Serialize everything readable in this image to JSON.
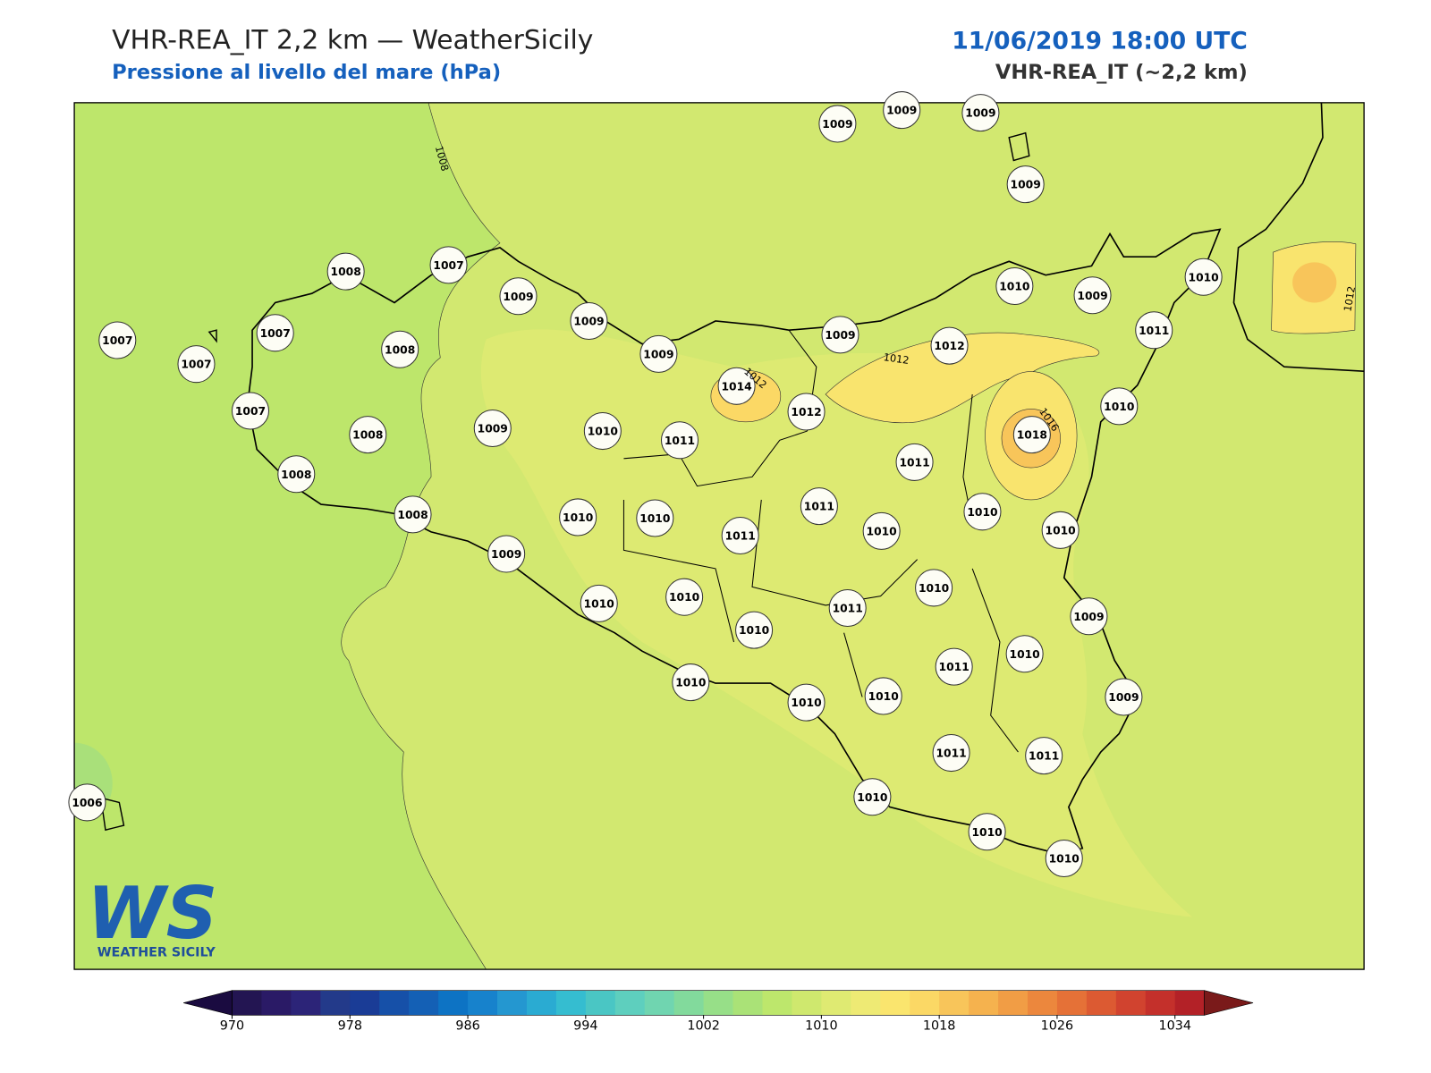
{
  "header": {
    "title": "VHR-REA_IT 2,2 km — WeatherSicily",
    "subtitle": "Pressione al livello del mare (hPa)",
    "date": "11/06/2019 18:00 UTC",
    "model": "VHR-REA_IT (~2,2 km)"
  },
  "map": {
    "stations": [
      1009,
      1009,
      1009,
      1009,
      1008,
      1007,
      1009,
      1009,
      1007,
      1007,
      1008,
      1007,
      1009,
      1009,
      1010,
      1009,
      1010,
      1011,
      1012,
      1014,
      1012,
      1010,
      1018,
      1007,
      1008,
      1009,
      1010,
      1011,
      1011,
      1008,
      1011,
      1010,
      1010,
      1008,
      1010,
      1010,
      1011,
      1010,
      1009,
      1010,
      1009,
      1010,
      1010,
      1011,
      1010,
      1011,
      1010,
      1010,
      1010,
      1010,
      1009,
      1011,
      1011,
      1006,
      1010,
      1010,
      1010
    ],
    "contour_labels": [
      1008,
      1012,
      1012,
      1016,
      1012
    ]
  },
  "colorbar": {
    "range": [
      970,
      1036
    ],
    "ticks": [
      970,
      978,
      986,
      994,
      1002,
      1010,
      1018,
      1026,
      1034
    ],
    "colors": [
      "#231552",
      "#2a1a66",
      "#2c2478",
      "#233a8a",
      "#1a3c96",
      "#1650a8",
      "#1460b5",
      "#0d73c4",
      "#1782cc",
      "#2497d0",
      "#2aabd2",
      "#35bdd0",
      "#4ac6c4",
      "#5ecfbe",
      "#70d5b0",
      "#82da9c",
      "#97df88",
      "#aae277",
      "#bde76c",
      "#cfe86e",
      "#dfea72",
      "#eeea74",
      "#fae56e",
      "#fbd865",
      "#f8c55a",
      "#f5b24e",
      "#f19d45",
      "#ec873d",
      "#e57137",
      "#dc5a32",
      "#d1432f",
      "#c4302b",
      "#b32127"
    ],
    "under_color": "#1a0b40",
    "over_color": "#7a1a1a"
  },
  "logo": {
    "mark": "WS",
    "text": "WEATHER SICILY"
  }
}
